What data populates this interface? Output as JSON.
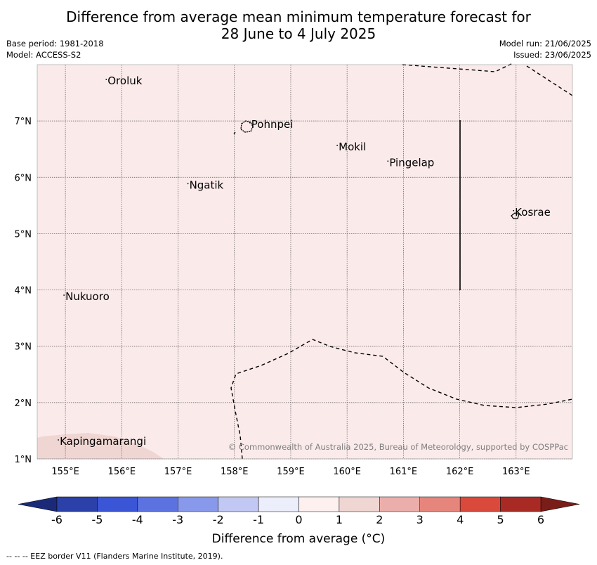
{
  "header": {
    "title_line1": "Difference from average mean minimum temperature forecast for",
    "title_line2": "28 June to 4 July 2025",
    "base_period": "Base period: 1981-2018",
    "model": "Model: ACCESS-S2",
    "model_run": "Model run: 21/06/2025",
    "issued": "Issued: 23/06/2025"
  },
  "map": {
    "lon_range": [
      154.5,
      164.0
    ],
    "lat_range": [
      1.0,
      8.0
    ],
    "lon_ticks": [
      {
        "value": 155,
        "label": "155°E"
      },
      {
        "value": 156,
        "label": "156°E"
      },
      {
        "value": 157,
        "label": "157°E"
      },
      {
        "value": 158,
        "label": "158°E"
      },
      {
        "value": 159,
        "label": "159°E"
      },
      {
        "value": 160,
        "label": "160°E"
      },
      {
        "value": 161,
        "label": "161°E"
      },
      {
        "value": 162,
        "label": "162°E"
      },
      {
        "value": 163,
        "label": "163°E"
      }
    ],
    "lat_ticks": [
      {
        "value": 1,
        "label": "1°N"
      },
      {
        "value": 2,
        "label": "2°N"
      },
      {
        "value": 3,
        "label": "3°N"
      },
      {
        "value": 4,
        "label": "4°N"
      },
      {
        "value": 5,
        "label": "5°N"
      },
      {
        "value": 6,
        "label": "6°N"
      },
      {
        "value": 7,
        "label": "7°N"
      }
    ],
    "background_anomaly_color": "#fbeaea",
    "patch_anomaly_color": "#f0d6d3",
    "places": [
      {
        "name": "Oroluk",
        "lon": 155.75,
        "lat": 7.65
      },
      {
        "name": "Pohnpei",
        "lon": 158.3,
        "lat": 6.88
      },
      {
        "name": "Mokil",
        "lon": 159.85,
        "lat": 6.48
      },
      {
        "name": "Pingelap",
        "lon": 160.75,
        "lat": 6.2
      },
      {
        "name": "Ngatik",
        "lon": 157.2,
        "lat": 5.8
      },
      {
        "name": "Kosrae",
        "lon": 162.98,
        "lat": 5.32
      },
      {
        "name": "Nukuoro",
        "lon": 155.0,
        "lat": 3.82
      },
      {
        "name": "Kapingamarangi",
        "lon": 154.9,
        "lat": 1.25
      }
    ],
    "copyright": "© Commonwealth of Australia 2025, Bureau of Meteorology, supported by COSPPac"
  },
  "colorbar": {
    "label": "Difference from average (°C)",
    "ticks": [
      "-6",
      "-5",
      "-4",
      "-3",
      "-2",
      "-1",
      "0",
      "1",
      "2",
      "3",
      "4",
      "5",
      "6"
    ],
    "low_extend_color": "#1a2a78",
    "high_extend_color": "#7a1c18",
    "colors": [
      "#2b40a8",
      "#3a55d6",
      "#5b72e0",
      "#8898ea",
      "#c2c8f4",
      "#eceefb",
      "#fdf0ef",
      "#f0d6d3",
      "#ecaeaa",
      "#e5857c",
      "#d94a3c",
      "#a92a24"
    ]
  },
  "footnote": "--  --  -- EEZ border V11 (Flanders Marine Institute, 2019)."
}
